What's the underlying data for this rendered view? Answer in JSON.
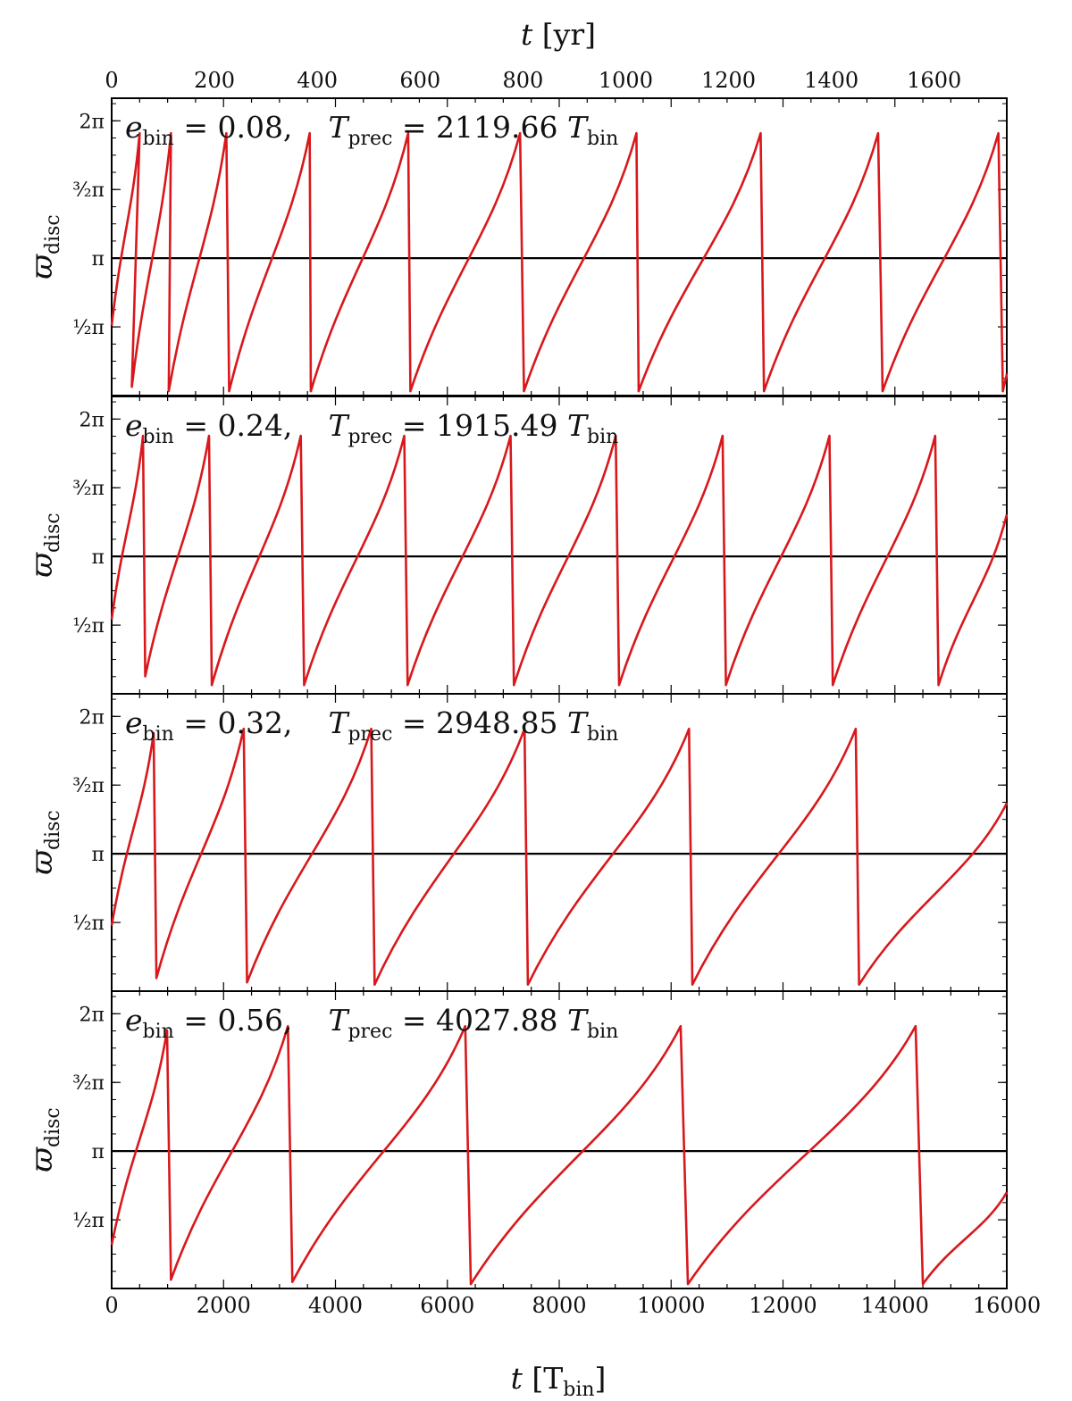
{
  "chart_data": {
    "type": "line",
    "xlabel_bottom": "t [T_bin]",
    "xlabel_top": "t [yr]",
    "x_bottom_ticks": [
      "0",
      "2000",
      "4000",
      "6000",
      "8000",
      "10000",
      "12000",
      "14000",
      "16000"
    ],
    "x_top_ticks": [
      "0",
      "200",
      "400",
      "600",
      "800",
      "1000",
      "1200",
      "1400",
      "1600"
    ],
    "xlim": [
      0,
      16000
    ],
    "top_axis_years_per_Tbin": 0.10883,
    "ylabel": "ϖ_disc",
    "ylim": [
      0,
      6.8
    ],
    "y_ticks": [
      "½π",
      "π",
      "³⁄₂π",
      "2π"
    ],
    "y_tick_values": [
      1.5708,
      3.1416,
      4.7124,
      6.2832
    ],
    "reference_line_y": 3.1416,
    "line_color": "#d8181c",
    "reference_color": "#000000",
    "panels": [
      {
        "annotation_e": "0.08",
        "annotation_T": "2119.66",
        "start": 1.6,
        "series": [
          [
            500,
            6.0
          ],
          [
            360,
            0.2
          ],
          [
            1060,
            6.0
          ],
          [
            1020,
            0.1
          ],
          [
            2050,
            6.0
          ],
          [
            2100,
            0.1
          ],
          [
            3540,
            6.0
          ],
          [
            3560,
            0.1
          ],
          [
            5300,
            6.0
          ],
          [
            5340,
            0.1
          ],
          [
            7300,
            6.0
          ],
          [
            7370,
            0.1
          ],
          [
            9380,
            6.0
          ],
          [
            9420,
            0.1
          ],
          [
            11600,
            6.0
          ],
          [
            11660,
            0.1
          ],
          [
            13700,
            6.0
          ],
          [
            13780,
            0.1
          ],
          [
            15850,
            6.0
          ],
          [
            15930,
            0.1
          ],
          [
            16000,
            0.5
          ]
        ]
      },
      {
        "annotation_e": "0.24",
        "annotation_T": "1915.49",
        "start": 1.7,
        "series": [
          [
            560,
            5.9
          ],
          [
            600,
            0.4
          ],
          [
            1740,
            5.9
          ],
          [
            1790,
            0.2
          ],
          [
            3380,
            5.9
          ],
          [
            3440,
            0.2
          ],
          [
            5230,
            5.9
          ],
          [
            5290,
            0.2
          ],
          [
            7130,
            5.9
          ],
          [
            7190,
            0.2
          ],
          [
            9010,
            5.9
          ],
          [
            9070,
            0.2
          ],
          [
            10920,
            5.9
          ],
          [
            10980,
            0.2
          ],
          [
            12830,
            5.9
          ],
          [
            12890,
            0.2
          ],
          [
            14720,
            5.9
          ],
          [
            14780,
            0.2
          ],
          [
            16000,
            4.1
          ]
        ]
      },
      {
        "annotation_e": "0.32",
        "annotation_T": "2948.85",
        "start": 1.5,
        "series": [
          [
            750,
            5.9
          ],
          [
            800,
            0.3
          ],
          [
            2360,
            6.0
          ],
          [
            2420,
            0.2
          ],
          [
            4640,
            6.0
          ],
          [
            4700,
            0.15
          ],
          [
            7380,
            6.0
          ],
          [
            7440,
            0.15
          ],
          [
            10320,
            6.0
          ],
          [
            10380,
            0.15
          ],
          [
            13300,
            6.0
          ],
          [
            13360,
            0.15
          ],
          [
            16000,
            4.3
          ]
        ]
      },
      {
        "annotation_e": "0.56",
        "annotation_T": "4027.88",
        "start": 1.0,
        "series": [
          [
            990,
            5.9
          ],
          [
            1060,
            0.2
          ],
          [
            3150,
            6.0
          ],
          [
            3230,
            0.15
          ],
          [
            6320,
            6.0
          ],
          [
            6420,
            0.1
          ],
          [
            10170,
            6.0
          ],
          [
            10300,
            0.1
          ],
          [
            14370,
            6.0
          ],
          [
            14500,
            0.1
          ],
          [
            16000,
            2.2
          ]
        ]
      }
    ]
  }
}
